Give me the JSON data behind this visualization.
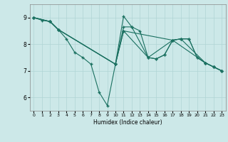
{
  "xlabel": "Humidex (Indice chaleur)",
  "ylabel": "",
  "xlim": [
    -0.5,
    23.5
  ],
  "ylim": [
    5.5,
    9.5
  ],
  "xticks": [
    0,
    1,
    2,
    3,
    4,
    5,
    6,
    7,
    8,
    9,
    10,
    11,
    12,
    13,
    14,
    15,
    16,
    17,
    18,
    19,
    20,
    21,
    22,
    23
  ],
  "yticks": [
    6,
    7,
    8,
    9
  ],
  "bg_color": "#cce8e8",
  "line_color": "#1a7060",
  "lines": [
    {
      "x": [
        0,
        1,
        2,
        3,
        4,
        5,
        6,
        7,
        8,
        9,
        10,
        11,
        12,
        13,
        14,
        15,
        16,
        17,
        18,
        19,
        20,
        21,
        22,
        23
      ],
      "y": [
        9.0,
        8.9,
        8.85,
        8.55,
        8.2,
        7.7,
        7.5,
        7.25,
        6.2,
        5.7,
        7.25,
        9.05,
        8.65,
        8.5,
        7.5,
        7.45,
        7.6,
        8.15,
        8.2,
        8.2,
        7.5,
        7.3,
        7.15,
        7.0
      ]
    },
    {
      "x": [
        0,
        2,
        3,
        10,
        11,
        12,
        14,
        15,
        16,
        17,
        18,
        21,
        22,
        23
      ],
      "y": [
        9.0,
        8.85,
        8.55,
        7.25,
        8.65,
        8.65,
        7.5,
        7.45,
        7.6,
        8.15,
        8.2,
        7.3,
        7.15,
        7.0
      ]
    },
    {
      "x": [
        0,
        2,
        3,
        10,
        11,
        14,
        17,
        18,
        19,
        20,
        21,
        22,
        23
      ],
      "y": [
        9.0,
        8.85,
        8.55,
        7.25,
        8.5,
        7.5,
        8.15,
        8.2,
        8.2,
        7.5,
        7.3,
        7.15,
        7.0
      ]
    },
    {
      "x": [
        0,
        2,
        3,
        10,
        11,
        17,
        21,
        22,
        23
      ],
      "y": [
        9.0,
        8.85,
        8.55,
        7.25,
        8.5,
        8.15,
        7.3,
        7.15,
        7.0
      ]
    }
  ]
}
